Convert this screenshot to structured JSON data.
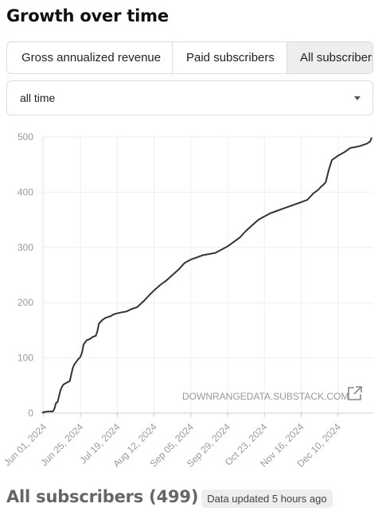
{
  "page": {
    "title": "Growth over time"
  },
  "tabs": [
    {
      "label": "Gross annualized revenue",
      "selected": false
    },
    {
      "label": "Paid subscribers",
      "selected": false
    },
    {
      "label": "All subscribers",
      "selected": true
    }
  ],
  "filter": {
    "selected": "all time"
  },
  "chart_data": {
    "type": "line",
    "title": "",
    "xlabel": "",
    "ylabel": "",
    "ylim": [
      0,
      500
    ],
    "yticks": [
      0,
      100,
      200,
      300,
      400,
      500
    ],
    "xlim": [
      "2024-05-31",
      "2025-01-02"
    ],
    "xticks": [
      "Jun 01, 2024",
      "Jun 25, 2024",
      "Jul 19, 2024",
      "Aug 12, 2024",
      "Sep 05, 2024",
      "Sep 29, 2024",
      "Oct 23, 2024",
      "Nov 16, 2024",
      "Dec 10, 2024"
    ],
    "grid": true,
    "watermark": "DOWNRANGEDATA.SUBSTACK.COM",
    "line_color": "#333333",
    "series": [
      {
        "x": [
          "2024-05-31",
          "2024-06-01",
          "2024-06-04",
          "2024-06-06",
          "2024-06-07",
          "2024-06-08",
          "2024-06-09",
          "2024-06-10",
          "2024-06-12",
          "2024-06-13",
          "2024-06-14",
          "2024-06-16",
          "2024-06-18",
          "2024-06-19",
          "2024-06-20",
          "2024-06-21",
          "2024-06-22",
          "2024-06-23",
          "2024-06-25",
          "2024-06-26",
          "2024-06-27",
          "2024-06-28",
          "2024-06-29",
          "2024-07-01",
          "2024-07-02",
          "2024-07-03",
          "2024-07-05",
          "2024-07-06",
          "2024-07-07",
          "2024-07-09",
          "2024-07-11",
          "2024-07-13",
          "2024-07-15",
          "2024-07-16",
          "2024-07-18",
          "2024-07-21",
          "2024-07-25",
          "2024-07-28",
          "2024-08-01",
          "2024-08-05",
          "2024-08-09",
          "2024-08-12",
          "2024-08-16",
          "2024-08-20",
          "2024-08-24",
          "2024-08-28",
          "2024-09-01",
          "2024-09-05",
          "2024-09-09",
          "2024-09-13",
          "2024-09-17",
          "2024-09-21",
          "2024-09-25",
          "2024-09-29",
          "2024-10-03",
          "2024-10-07",
          "2024-10-11",
          "2024-10-15",
          "2024-10-19",
          "2024-10-23",
          "2024-10-27",
          "2024-10-31",
          "2024-11-04",
          "2024-11-08",
          "2024-11-12",
          "2024-11-16",
          "2024-11-20",
          "2024-11-22",
          "2024-11-24",
          "2024-11-27",
          "2024-11-29",
          "2024-11-30",
          "2024-12-02",
          "2024-12-04",
          "2024-12-06",
          "2024-12-08",
          "2024-12-10",
          "2024-12-14",
          "2024-12-18",
          "2024-12-22",
          "2024-12-25",
          "2024-12-27",
          "2024-12-29",
          "2024-12-31",
          "2025-01-01"
        ],
        "y": [
          0,
          2,
          3,
          3,
          3,
          8,
          18,
          20,
          42,
          48,
          52,
          55,
          58,
          70,
          82,
          88,
          92,
          96,
          102,
          110,
          124,
          128,
          132,
          134,
          136,
          138,
          140,
          148,
          162,
          168,
          172,
          174,
          176,
          178,
          180,
          182,
          184,
          188,
          192,
          202,
          214,
          222,
          232,
          240,
          250,
          260,
          272,
          278,
          282,
          286,
          288,
          290,
          296,
          302,
          310,
          318,
          330,
          340,
          350,
          356,
          362,
          366,
          370,
          374,
          378,
          382,
          386,
          392,
          398,
          404,
          410,
          412,
          418,
          440,
          458,
          462,
          466,
          472,
          480,
          482,
          484,
          486,
          488,
          492,
          499
        ]
      }
    ]
  },
  "footer": {
    "title": "All subscribers (499)",
    "badge": "Data updated 5 hours ago"
  }
}
